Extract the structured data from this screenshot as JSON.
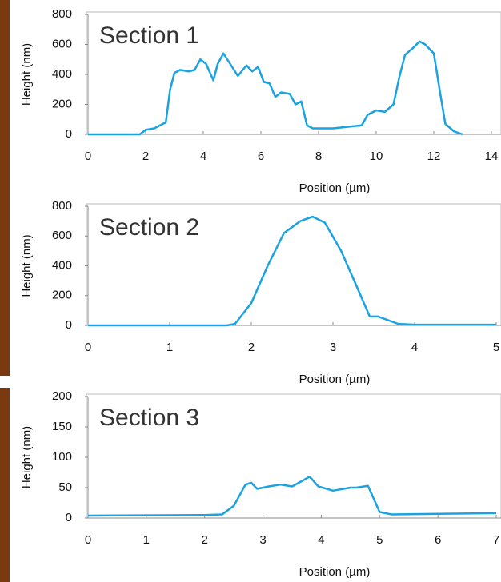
{
  "chart_data": [
    {
      "type": "line",
      "annotation": "Section 1",
      "xlabel": "Position (µm)",
      "ylabel": "Height (nm)",
      "xlim": [
        0,
        14
      ],
      "ylim": [
        0,
        800
      ],
      "xticks": [
        0,
        2,
        4,
        6,
        8,
        10,
        12,
        14
      ],
      "yticks": [
        0,
        200,
        400,
        600,
        800
      ],
      "series": [
        {
          "color": "#1aa3e0",
          "x": [
            0,
            1.8,
            2,
            2.3,
            2.5,
            2.7,
            2.85,
            3,
            3.2,
            3.5,
            3.7,
            3.9,
            4.1,
            4.35,
            4.5,
            4.7,
            4.9,
            5.2,
            5.5,
            5.7,
            5.9,
            6.1,
            6.3,
            6.5,
            6.7,
            7,
            7.2,
            7.4,
            7.6,
            7.8,
            8.5,
            9,
            9.5,
            9.7,
            10,
            10.3,
            10.6,
            10.8,
            11,
            11.3,
            11.5,
            11.7,
            12,
            12.2,
            12.4,
            12.7,
            13
          ],
          "values": [
            0,
            0,
            30,
            40,
            60,
            80,
            300,
            410,
            430,
            420,
            430,
            500,
            470,
            360,
            470,
            540,
            480,
            390,
            460,
            420,
            450,
            350,
            340,
            250,
            280,
            270,
            200,
            220,
            60,
            40,
            40,
            50,
            60,
            130,
            160,
            150,
            200,
            380,
            530,
            580,
            620,
            600,
            540,
            300,
            70,
            20,
            0
          ]
        }
      ]
    },
    {
      "type": "line",
      "annotation": "Section 2",
      "xlabel": "Position (µm)",
      "ylabel": "Height (nm)",
      "xlim": [
        0,
        5
      ],
      "ylim": [
        0,
        800
      ],
      "xticks": [
        0,
        1,
        2,
        3,
        4,
        5
      ],
      "yticks": [
        0,
        200,
        400,
        600,
        800
      ],
      "series": [
        {
          "color": "#1aa3e0",
          "x": [
            0,
            1.7,
            1.8,
            2,
            2.2,
            2.4,
            2.6,
            2.75,
            2.9,
            3.1,
            3.3,
            3.45,
            3.55,
            3.8,
            4,
            5
          ],
          "values": [
            0,
            0,
            10,
            150,
            400,
            620,
            700,
            730,
            690,
            500,
            250,
            60,
            60,
            10,
            5,
            5
          ]
        }
      ]
    },
    {
      "type": "line",
      "annotation": "Section 3",
      "xlabel": "Position (µm)",
      "ylabel": "Height (nm)",
      "xlim": [
        0,
        7
      ],
      "ylim": [
        0,
        200
      ],
      "xticks": [
        0,
        1,
        2,
        3,
        4,
        5,
        6,
        7
      ],
      "yticks": [
        0,
        50,
        100,
        150,
        200
      ],
      "series": [
        {
          "color": "#1aa3e0",
          "x": [
            0,
            2,
            2.3,
            2.5,
            2.7,
            2.8,
            2.9,
            3.1,
            3.3,
            3.5,
            3.8,
            3.95,
            4.2,
            4.5,
            4.6,
            4.8,
            5,
            5.2,
            7
          ],
          "values": [
            4,
            5,
            6,
            20,
            55,
            58,
            48,
            52,
            55,
            52,
            68,
            52,
            45,
            50,
            50,
            53,
            10,
            6,
            8
          ]
        }
      ]
    }
  ]
}
